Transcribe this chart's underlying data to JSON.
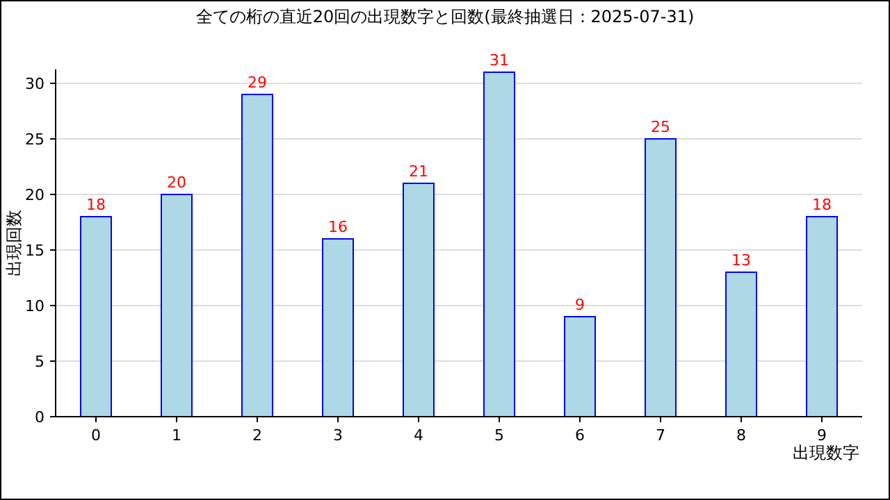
{
  "chart_data": {
    "type": "bar",
    "title": "全ての桁の直近20回の出現数字と回数(最終抽選日：2025-07-31)",
    "xlabel": "出現数字",
    "ylabel": "出現回数",
    "categories": [
      "0",
      "1",
      "2",
      "3",
      "4",
      "5",
      "6",
      "7",
      "8",
      "9"
    ],
    "values": [
      18,
      20,
      29,
      16,
      21,
      31,
      9,
      25,
      13,
      18
    ],
    "color": "#add8e6",
    "ylim": [
      0,
      31.25
    ],
    "yticks": [
      0,
      5,
      10,
      15,
      20,
      25,
      30
    ],
    "grid": "y",
    "data_labels": true
  }
}
